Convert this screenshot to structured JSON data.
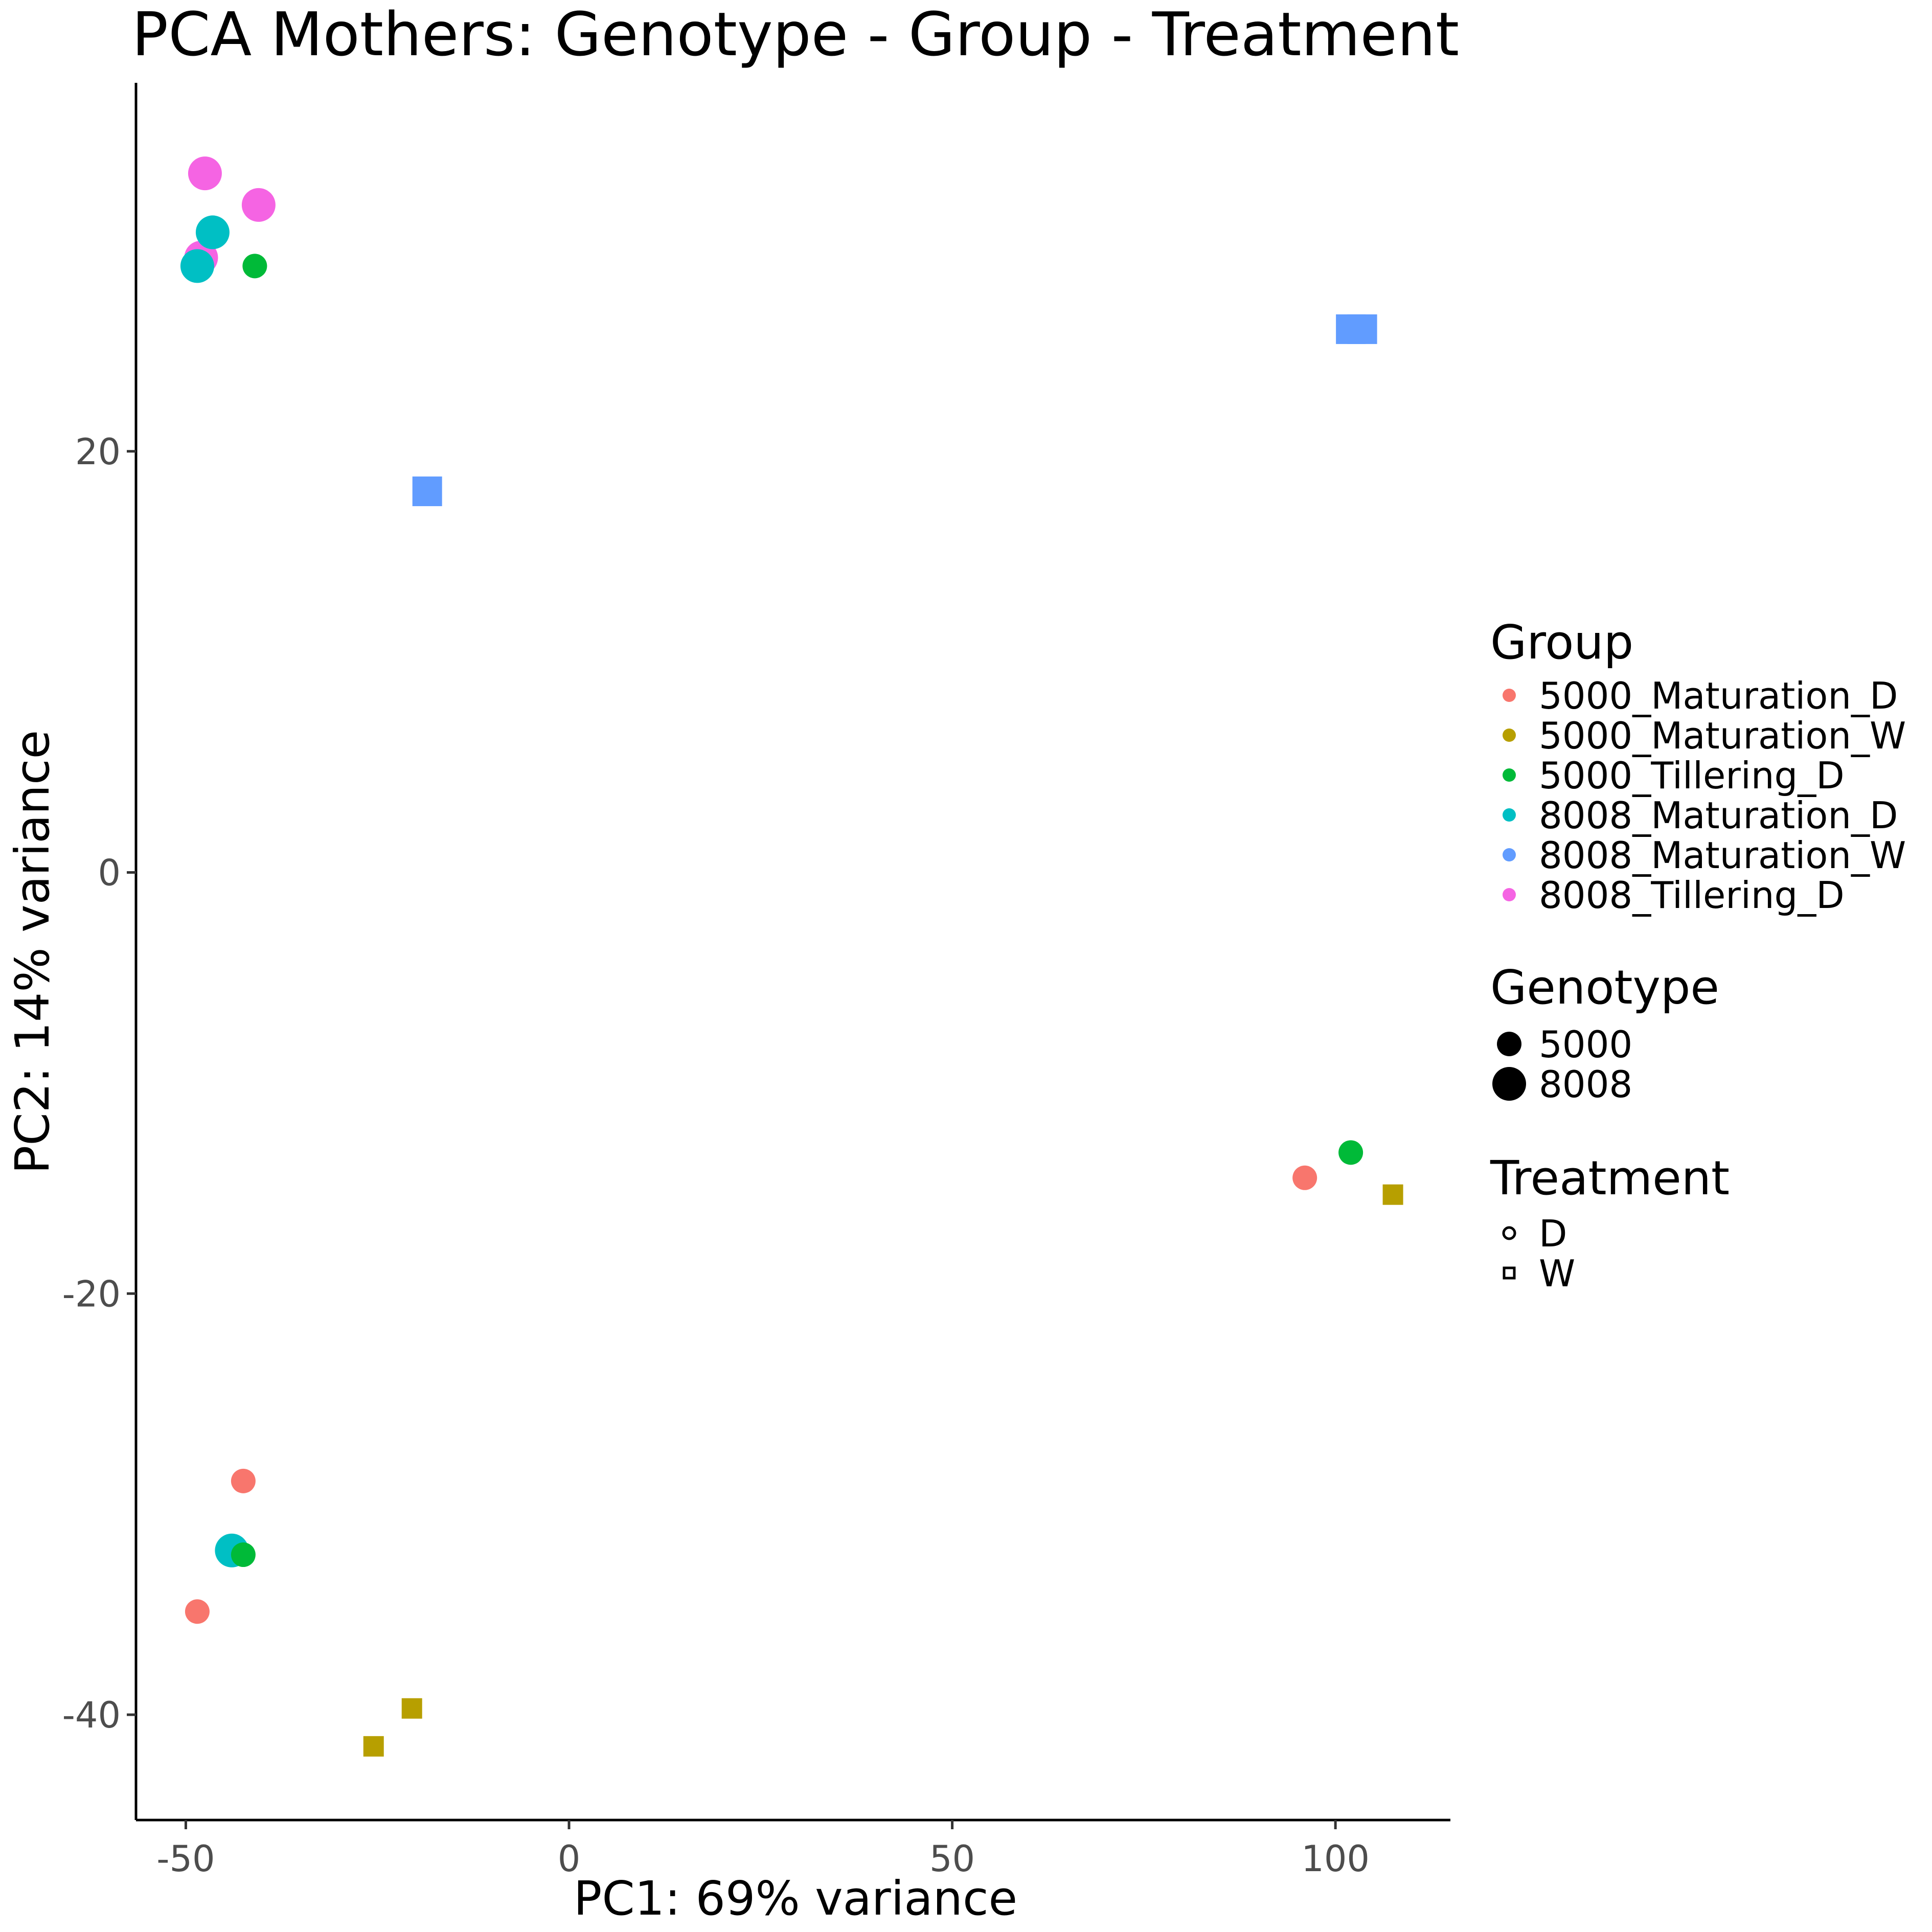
{
  "chart_data": {
    "type": "scatter",
    "title": "PCA Mothers: Genotype - Group - Treatment",
    "xlabel": "PC1: 69% variance",
    "ylabel": "PC2: 14% variance",
    "xlim": [
      -56.5,
      115
    ],
    "ylim": [
      -45,
      37.5
    ],
    "x_ticks": [
      -50,
      0,
      50,
      100
    ],
    "y_ticks": [
      -40,
      -20,
      0,
      20
    ],
    "grid": false,
    "legend_position": "right",
    "legends": {
      "group": {
        "title": "Group",
        "entries": [
          {
            "label": "5000_Maturation_D",
            "color": "#F8766D"
          },
          {
            "label": "5000_Maturation_W",
            "color": "#B79F00"
          },
          {
            "label": "5000_Tillering_D",
            "color": "#00BA38"
          },
          {
            "label": "8008_Maturation_D",
            "color": "#00BFC4"
          },
          {
            "label": "8008_Maturation_W",
            "color": "#619CFF"
          },
          {
            "label": "8008_Tillering_D",
            "color": "#F564E3"
          }
        ]
      },
      "genotype": {
        "title": "Genotype",
        "entries": [
          {
            "label": "5000",
            "size": "small"
          },
          {
            "label": "8008",
            "size": "large"
          }
        ]
      },
      "treatment": {
        "title": "Treatment",
        "entries": [
          {
            "label": "D",
            "shape": "circle"
          },
          {
            "label": "W",
            "shape": "square"
          }
        ]
      }
    },
    "points": [
      {
        "x": -47.5,
        "y": 33.2,
        "group": "8008_Tillering_D",
        "genotype": "8008",
        "treatment": "D"
      },
      {
        "x": -40.5,
        "y": 31.7,
        "group": "8008_Tillering_D",
        "genotype": "8008",
        "treatment": "D"
      },
      {
        "x": -48.0,
        "y": 29.2,
        "group": "8008_Tillering_D",
        "genotype": "8008",
        "treatment": "D"
      },
      {
        "x": -46.5,
        "y": 30.4,
        "group": "8008_Maturation_D",
        "genotype": "8008",
        "treatment": "D"
      },
      {
        "x": -48.5,
        "y": 28.8,
        "group": "8008_Maturation_D",
        "genotype": "8008",
        "treatment": "D"
      },
      {
        "x": -41.0,
        "y": 28.8,
        "group": "5000_Tillering_D",
        "genotype": "5000",
        "treatment": "D"
      },
      {
        "x": 102.0,
        "y": 25.8,
        "group": "8008_Maturation_W",
        "genotype": "8008",
        "treatment": "W"
      },
      {
        "x": 103.5,
        "y": 25.8,
        "group": "8008_Maturation_W",
        "genotype": "8008",
        "treatment": "W"
      },
      {
        "x": -18.5,
        "y": 18.1,
        "group": "8008_Maturation_W",
        "genotype": "8008",
        "treatment": "W"
      },
      {
        "x": 102.0,
        "y": -13.3,
        "group": "5000_Tillering_D",
        "genotype": "5000",
        "treatment": "D"
      },
      {
        "x": 96.0,
        "y": -14.5,
        "group": "5000_Maturation_D",
        "genotype": "5000",
        "treatment": "D"
      },
      {
        "x": 107.5,
        "y": -15.3,
        "group": "5000_Maturation_W",
        "genotype": "5000",
        "treatment": "W"
      },
      {
        "x": -42.5,
        "y": -28.9,
        "group": "5000_Maturation_D",
        "genotype": "5000",
        "treatment": "D"
      },
      {
        "x": -44.0,
        "y": -32.2,
        "group": "8008_Maturation_D",
        "genotype": "8008",
        "treatment": "D"
      },
      {
        "x": -42.5,
        "y": -32.4,
        "group": "5000_Tillering_D",
        "genotype": "5000",
        "treatment": "D"
      },
      {
        "x": -48.5,
        "y": -35.1,
        "group": "5000_Maturation_D",
        "genotype": "5000",
        "treatment": "D"
      },
      {
        "x": -20.5,
        "y": -39.7,
        "group": "5000_Maturation_W",
        "genotype": "5000",
        "treatment": "W"
      },
      {
        "x": -25.5,
        "y": -41.5,
        "group": "5000_Maturation_W",
        "genotype": "5000",
        "treatment": "W"
      }
    ]
  }
}
